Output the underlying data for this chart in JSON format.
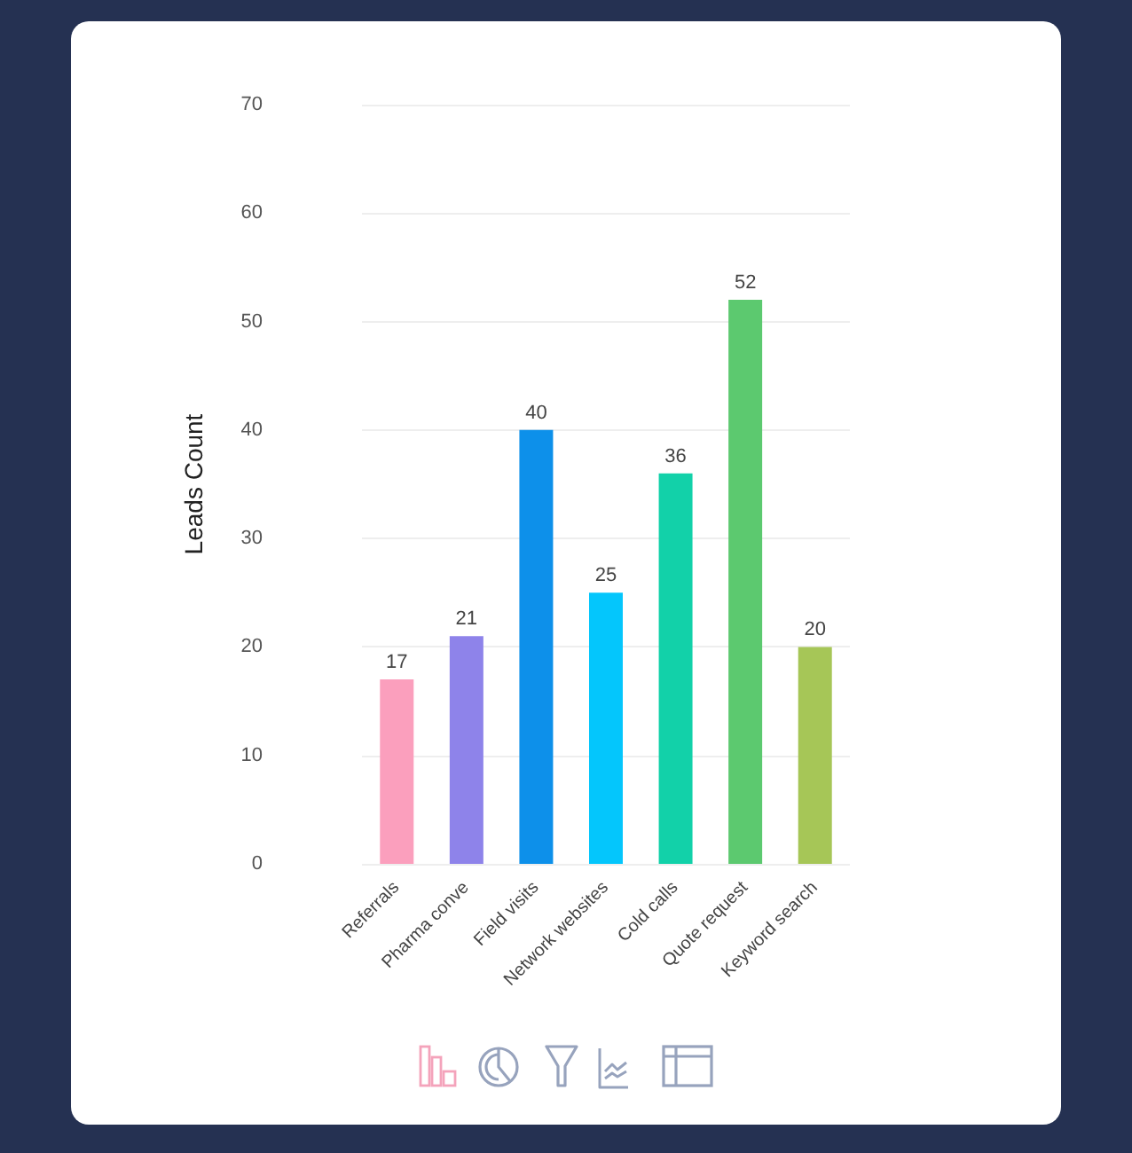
{
  "chart_data": {
    "type": "bar",
    "ylabel": "Leads Count",
    "categories": [
      "Referrals",
      "Pharma conve",
      "Field visits",
      "Network websites",
      "Cold calls",
      "Quote request",
      "Keyword search"
    ],
    "values": [
      17,
      21,
      40,
      25,
      36,
      52,
      20
    ],
    "colors": [
      "#fb9fbd",
      "#8e83ea",
      "#0d90ea",
      "#04c6fc",
      "#12d1a9",
      "#5cc96f",
      "#a6c657"
    ],
    "ylim": [
      0,
      70
    ],
    "yticks": [
      0,
      10,
      20,
      30,
      40,
      50,
      60,
      70
    ],
    "grid": "y",
    "data_labels": true
  }
}
